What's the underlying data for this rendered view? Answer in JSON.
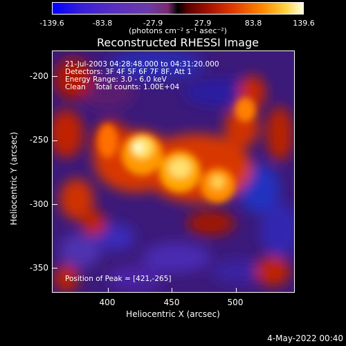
{
  "colorbar": {
    "ticks": [
      "-139.6",
      "-83.8",
      "-27.9",
      "27.9",
      "83.8",
      "139.6"
    ],
    "units": "(photons cm⁻² s⁻¹ asec⁻²)"
  },
  "title": "Reconstructed RHESSI Image",
  "info": {
    "line1": "21-Jul-2003 04:28:48.000 to 04:31:20.000",
    "line2": "Detectors: 3F 4F 5F 6F 7F 8F, Att 1",
    "line3": "Energy Range: 3.0 - 6.0 keV",
    "line4": "Clean    Total counts: 1.00E+04",
    "peak": "Position of Peak = [421,-265]"
  },
  "axes": {
    "xlabel": "Heliocentric X (arcsec)",
    "ylabel": "Heliocentric Y (arcsec)",
    "xticks": [
      "400",
      "450",
      "500"
    ],
    "yticks": [
      "-200",
      "-250",
      "-300",
      "-350"
    ]
  },
  "footer": {
    "date": "4-May-2022 00:40"
  }
}
